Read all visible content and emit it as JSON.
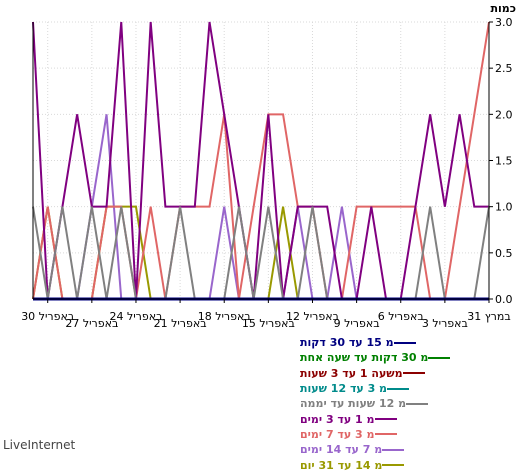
{
  "brand": "LiveInternet",
  "chart_data": {
    "type": "line",
    "ylabel": "כמות",
    "ylim": [
      0,
      3
    ],
    "yticks": [
      "0.0",
      "0.5",
      "1.0",
      "1.5",
      "2.0",
      "2.5",
      "3.0"
    ],
    "xlim": [
      0,
      31
    ],
    "xticks": [
      {
        "x": 0,
        "label": "31 במרץ"
      },
      {
        "x": 3,
        "label": "3 באפריל"
      },
      {
        "x": 6,
        "label": "6 באפריל"
      },
      {
        "x": 9,
        "label": "9 באפריל"
      },
      {
        "x": 12,
        "label": "12 באפריל"
      },
      {
        "x": 15,
        "label": "15 באפריל"
      },
      {
        "x": 18,
        "label": "18 באפריל"
      },
      {
        "x": 21,
        "label": "21 באפריל"
      },
      {
        "x": 24,
        "label": "24 באפריל"
      },
      {
        "x": 27,
        "label": "27 באפריל"
      },
      {
        "x": 30,
        "label": "30 באפריל"
      }
    ],
    "grid": true,
    "series": [
      {
        "name": "מ 15 עד 30 דקות",
        "color": "#000080",
        "values": [
          0,
          0,
          0,
          0,
          0,
          0,
          0,
          0,
          0,
          0,
          0,
          0,
          0,
          0,
          0,
          0,
          0,
          0,
          0,
          0,
          0,
          0,
          0,
          0,
          0,
          0,
          0,
          0,
          0,
          0,
          0,
          0
        ]
      },
      {
        "name": "מ 30 דקות עד שעה אחת",
        "color": "#008000",
        "values": [
          0,
          0,
          0,
          0,
          0,
          0,
          0,
          0,
          0,
          0,
          0,
          0,
          0,
          0,
          0,
          0,
          0,
          0,
          0,
          0,
          0,
          0,
          0,
          0,
          0,
          0,
          0,
          0,
          0,
          0,
          0,
          0
        ]
      },
      {
        "name": "משעה 1 עד 3 שעות",
        "color": "#8b0000",
        "values": [
          0,
          0,
          0,
          0,
          0,
          0,
          0,
          0,
          0,
          0,
          0,
          0,
          0,
          0,
          0,
          0,
          0,
          0,
          0,
          0,
          0,
          0,
          0,
          0,
          0,
          0,
          0,
          0,
          0,
          0,
          0,
          0
        ]
      },
      {
        "name": "מ 3 עד 12 שעות",
        "color": "#008b8b",
        "values": [
          0,
          0,
          0,
          0,
          0,
          0,
          0,
          0,
          0,
          0,
          0,
          0,
          0,
          0,
          0,
          0,
          0,
          0,
          0,
          0,
          0,
          0,
          0,
          0,
          0,
          0,
          0,
          0,
          0,
          0,
          0,
          0
        ]
      },
      {
        "name": "מ 12 שעות עד יממה",
        "color": "#808080",
        "values": [
          1,
          0,
          0,
          0,
          1,
          0,
          0,
          0,
          0,
          0,
          0,
          0,
          1,
          0,
          0,
          1,
          0,
          1,
          0,
          0,
          0,
          1,
          0,
          0,
          0,
          1,
          0,
          1,
          0,
          1,
          0,
          1
        ]
      },
      {
        "name": "מ 1 עד 3 ימים",
        "color": "#800080",
        "values": [
          1,
          1,
          2,
          1,
          2,
          1,
          0,
          0,
          1,
          0,
          0,
          1,
          1,
          1,
          0,
          2,
          0,
          1,
          2,
          3,
          1,
          1,
          1,
          3,
          0,
          3,
          1,
          1,
          2,
          1,
          0,
          3
        ]
      },
      {
        "name": "מ 3 עד 7 ימים",
        "color": "#e06666",
        "values": [
          3,
          2,
          1,
          0,
          0,
          1,
          1,
          1,
          1,
          1,
          0,
          0,
          1,
          1,
          2,
          2,
          1,
          0,
          2,
          1,
          1,
          1,
          0,
          1,
          0,
          1,
          1,
          0,
          0,
          0,
          1,
          0
        ]
      },
      {
        "name": "מ 7 עד 14 ימים",
        "color": "#9966cc",
        "values": [
          0,
          0,
          0,
          0,
          0,
          0,
          0,
          0,
          0,
          0,
          1,
          0,
          0,
          1,
          0,
          0,
          0,
          0,
          1,
          0,
          0,
          0,
          0,
          0,
          0,
          0,
          2,
          1,
          0,
          0,
          0,
          0
        ]
      },
      {
        "name": "מ 14 עד 31 יום",
        "color": "#999900",
        "values": [
          0,
          0,
          0,
          0,
          0,
          0,
          0,
          0,
          0,
          0,
          0,
          0,
          0,
          0,
          1,
          0,
          0,
          0,
          0,
          0,
          0,
          0,
          0,
          0,
          1,
          1,
          1,
          0,
          0,
          0,
          1,
          0
        ]
      }
    ]
  }
}
